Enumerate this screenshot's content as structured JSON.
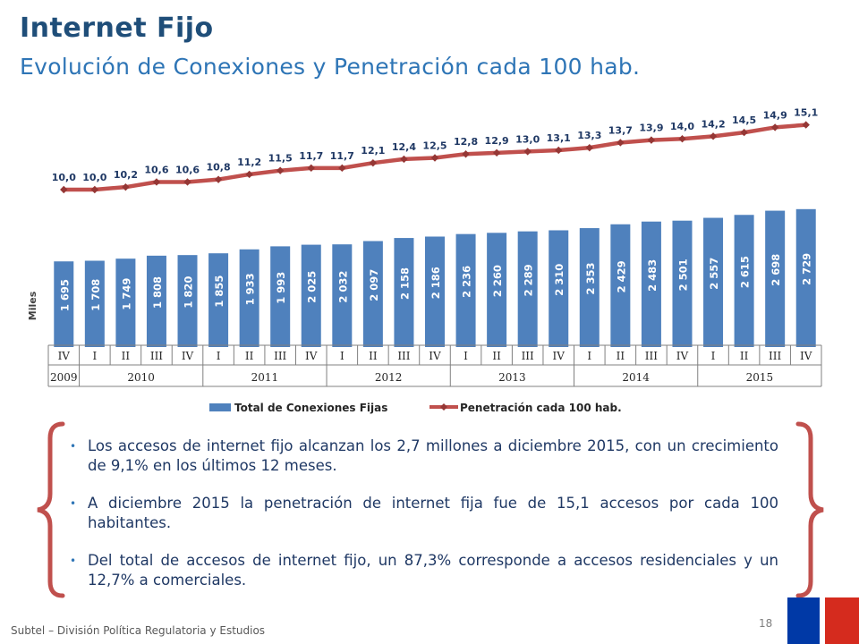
{
  "header": {
    "title": "Internet Fijo",
    "subtitle": "Evolución de Conexiones y Penetración cada 100 hab."
  },
  "chart_data": {
    "type": "bar",
    "ylabel": "Miles",
    "categories": [
      "IV",
      "I",
      "II",
      "III",
      "IV",
      "I",
      "II",
      "III",
      "IV",
      "I",
      "II",
      "III",
      "IV",
      "I",
      "II",
      "III",
      "IV",
      "I",
      "II",
      "III",
      "IV",
      "I",
      "II",
      "III",
      "IV"
    ],
    "years": [
      {
        "label": "2009",
        "span": 1
      },
      {
        "label": "2010",
        "span": 4
      },
      {
        "label": "2011",
        "span": 4
      },
      {
        "label": "2012",
        "span": 4
      },
      {
        "label": "2013",
        "span": 4
      },
      {
        "label": "2014",
        "span": 4
      },
      {
        "label": "2015",
        "span": 4
      }
    ],
    "series": [
      {
        "name": "Total de Conexiones Fijas",
        "type": "bar",
        "values": [
          1695,
          1708,
          1749,
          1808,
          1820,
          1855,
          1933,
          1993,
          2025,
          2032,
          2097,
          2158,
          2186,
          2236,
          2260,
          2289,
          2310,
          2353,
          2429,
          2483,
          2501,
          2557,
          2615,
          2698,
          2729
        ],
        "labels": [
          "1 695",
          "1 708",
          "1 749",
          "1 808",
          "1 820",
          "1 855",
          "1 933",
          "1 993",
          "2 025",
          "2 032",
          "2 097",
          "2 158",
          "2 186",
          "2 236",
          "2 260",
          "2 289",
          "2 310",
          "2 353",
          "2 429",
          "2 483",
          "2 501",
          "2 557",
          "2 615",
          "2 698",
          "2 729"
        ]
      },
      {
        "name": "Penetración cada 100 hab.",
        "type": "line",
        "values": [
          10.0,
          10.0,
          10.2,
          10.6,
          10.6,
          10.8,
          11.2,
          11.5,
          11.7,
          11.7,
          12.1,
          12.4,
          12.5,
          12.8,
          12.9,
          13.0,
          13.1,
          13.3,
          13.7,
          13.9,
          14.0,
          14.2,
          14.5,
          14.9,
          15.1
        ],
        "labels": [
          "10,0",
          "10,0",
          "10,2",
          "10,6",
          "10,6",
          "10,8",
          "11,2",
          "11,5",
          "11,7",
          "11,7",
          "12,1",
          "12,4",
          "12,5",
          "12,8",
          "12,9",
          "13,0",
          "13,1",
          "13,3",
          "13,7",
          "13,9",
          "14,0",
          "14,2",
          "14,5",
          "14,9",
          "15,1"
        ]
      }
    ],
    "legend_position": "bottom",
    "grid": false,
    "colors": {
      "bar": "#4f81bd",
      "line": "#c0504d",
      "marker": "#953735",
      "label": "#1f3864"
    }
  },
  "bullets": [
    "Los accesos de internet fijo alcanzan los 2,7 millones a diciembre 2015, con un crecimiento de 9,1% en los últimos 12 meses.",
    "A diciembre 2015 la penetración de internet fija fue de 15,1 accesos por cada 100 habitantes.",
    "Del total de accesos de internet fijo, un 87,3% corresponde a accesos residenciales  y un 12,7% a comerciales."
  ],
  "footer": {
    "text": "Subtel – División Política Regulatoria y Estudios",
    "page": "18"
  },
  "colors": {
    "title": "#1f4e79",
    "subtitle": "#2e75b6",
    "brace": "#c0504d",
    "flag_blue": "#0039a6",
    "flag_red": "#d52b1e"
  }
}
